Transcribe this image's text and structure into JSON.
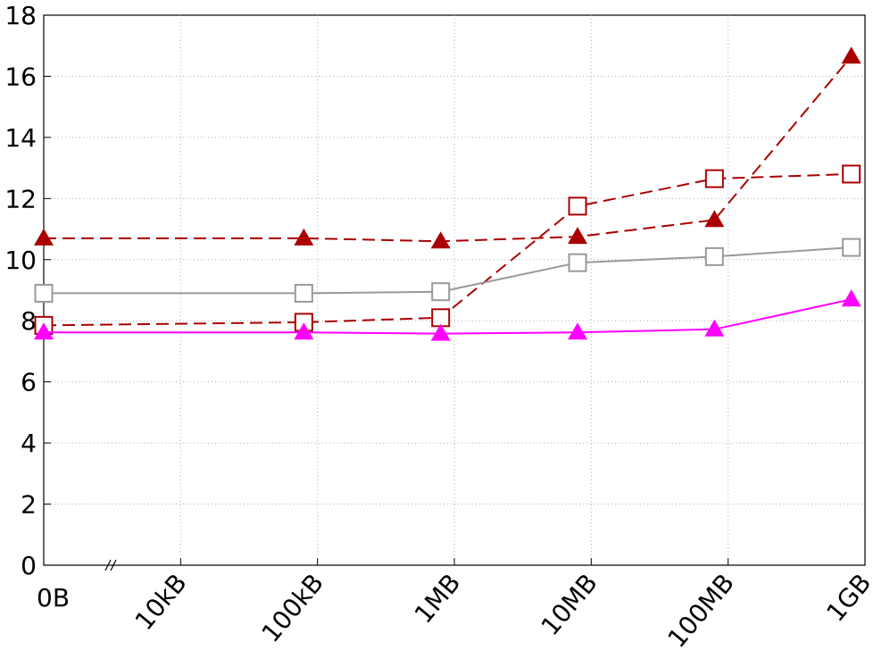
{
  "chart_data": {
    "type": "line",
    "x": [
      0,
      1.9,
      2.9,
      3.9,
      4.9,
      5.9
    ],
    "xlim": [
      0,
      6
    ],
    "xticks": [
      {
        "value": 0,
        "label": "0B"
      },
      {
        "value": 1,
        "label": "10kB"
      },
      {
        "value": 2,
        "label": "100kB"
      },
      {
        "value": 3,
        "label": "1MB"
      },
      {
        "value": 4,
        "label": "10MB"
      },
      {
        "value": 5,
        "label": "100MB"
      },
      {
        "value": 6,
        "label": "1GB"
      }
    ],
    "ylim": [
      0,
      18
    ],
    "yticks": [
      0,
      2,
      4,
      6,
      8,
      10,
      12,
      14,
      16,
      18
    ],
    "grid": true,
    "series": [
      {
        "color": "#aa0000",
        "marker": "triangle",
        "dashed": true,
        "values": [
          10.7,
          10.7,
          10.6,
          10.75,
          11.3,
          16.65
        ]
      },
      {
        "color": "#aa0000",
        "marker": "square",
        "dashed": true,
        "values": [
          7.85,
          7.95,
          8.1,
          11.75,
          12.65,
          12.8
        ]
      },
      {
        "color": "#999999",
        "marker": "square",
        "dashed": false,
        "values": [
          8.9,
          8.9,
          8.95,
          9.9,
          10.1,
          10.4
        ]
      },
      {
        "color": "#ff00ff",
        "marker": "triangle",
        "dashed": false,
        "values": [
          7.62,
          7.62,
          7.58,
          7.62,
          7.72,
          8.7
        ]
      }
    ]
  }
}
